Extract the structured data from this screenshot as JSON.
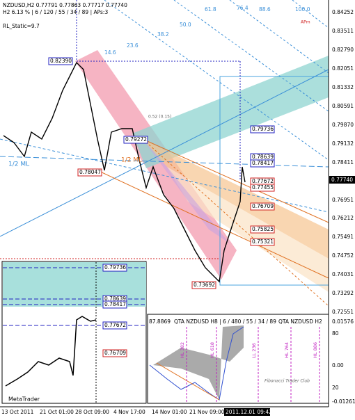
{
  "header": {
    "symbol_line": "NZDUSD,H2  0.77791 0.77863 0.77717 0.77740",
    "info_line": "H2  6.13 % | 6 / 120 / 55 / 34 / 89 | APs:3",
    "static": "RL_Static=9.7"
  },
  "price_axis": [
    "0.84252",
    "0.83511",
    "0.82790",
    "0.82051",
    "0.81332",
    "0.80591",
    "0.79870",
    "0.79132",
    "0.78411",
    "0.76951",
    "0.76212",
    "0.75491",
    "0.74752",
    "0.74031",
    "0.73292",
    "0.72551"
  ],
  "current_price": "0.77740",
  "time_axis": [
    "13 Oct 2011",
    "21 Oct 01:00",
    "28 Oct 09:00",
    "4 Nov 17:00",
    "14 Nov 01:00",
    "21 Nov 09:00"
  ],
  "time_cursor": "2011.12.01 09:42",
  "price_boxes": {
    "high": "0.82390",
    "mid": "0.79272",
    "left": "0.78047",
    "low": "0.73692",
    "blue": [
      "0.79736",
      "0.78639",
      "0.78417"
    ],
    "red": [
      "0.77672",
      "0.77455",
      "0.76709",
      "0.75825",
      "0.75321"
    ]
  },
  "fib_labels": [
    "61.8",
    "76.4",
    "88.6",
    "100.0",
    "50.0",
    "38.2",
    "23.6",
    "14.6"
  ],
  "median_labels": [
    "1/2 ML",
    "1/2 ML"
  ],
  "ratio_label": "0.52 (0.15)",
  "apm_label": "APm",
  "inset": {
    "blue": [
      "0.79736",
      "0.78639",
      "0.78417",
      "0.77672"
    ],
    "red": "0.76709",
    "brand": "MetaTrader"
  },
  "indicator": {
    "value": "87.8869",
    "title_h8": "QTA NZDUSD H8 | 6 / 480 / 55 / 34 / 89",
    "title_h2": "QTA NZDUSD H2",
    "axis": [
      "0.01576",
      "80",
      "0.00",
      "20",
      "-0.01261"
    ],
    "levels": [
      "HL 382",
      "HL 618",
      "LL 236",
      "HL 764",
      "HL 886"
    ],
    "watermark": "Fibonacci Trader Club"
  }
}
